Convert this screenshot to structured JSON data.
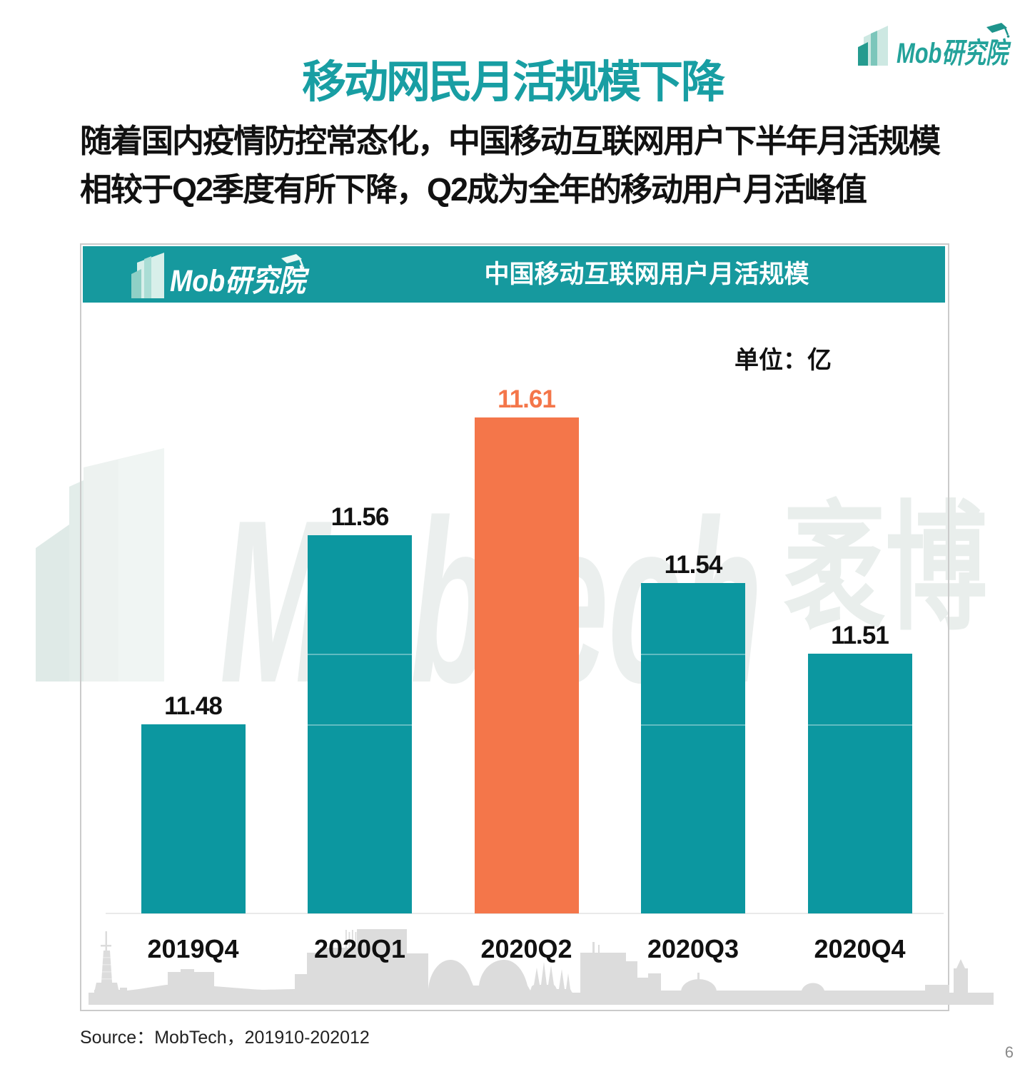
{
  "page": {
    "title": "移动网民月活规模下降",
    "paragraph_line1": "随着国内疫情防控常态化，中国移动互联网用户下半年月活规模",
    "paragraph_line2": "相较于Q2季度有所下降，Q2成为全年的移动用户月活峰值",
    "source": "Source：MobTech，201910-202012",
    "page_number": "6"
  },
  "logo": {
    "brand": "Mob研究院"
  },
  "watermark": {
    "latin": "Mobtech",
    "cjk": "袤博"
  },
  "chart": {
    "header_title": "中国移动互联网用户月活规模",
    "unit_label": "单位：亿"
  },
  "chart_data": {
    "type": "bar",
    "categories": [
      "2019Q4",
      "2020Q1",
      "2020Q2",
      "2020Q3",
      "2020Q4"
    ],
    "values": [
      11.48,
      11.56,
      11.61,
      11.54,
      11.51
    ],
    "title": "中国移动互联网用户月活规模",
    "unit": "亿",
    "ylim": [
      11.4,
      11.66
    ],
    "grid": false,
    "highlight_index": 2,
    "bar_color": "#0C97A0",
    "highlight_color": "#F4764A",
    "label_color": "#111111",
    "highlight_label_color": "#F4764A",
    "segment_lines": [
      11.48,
      11.51
    ]
  }
}
